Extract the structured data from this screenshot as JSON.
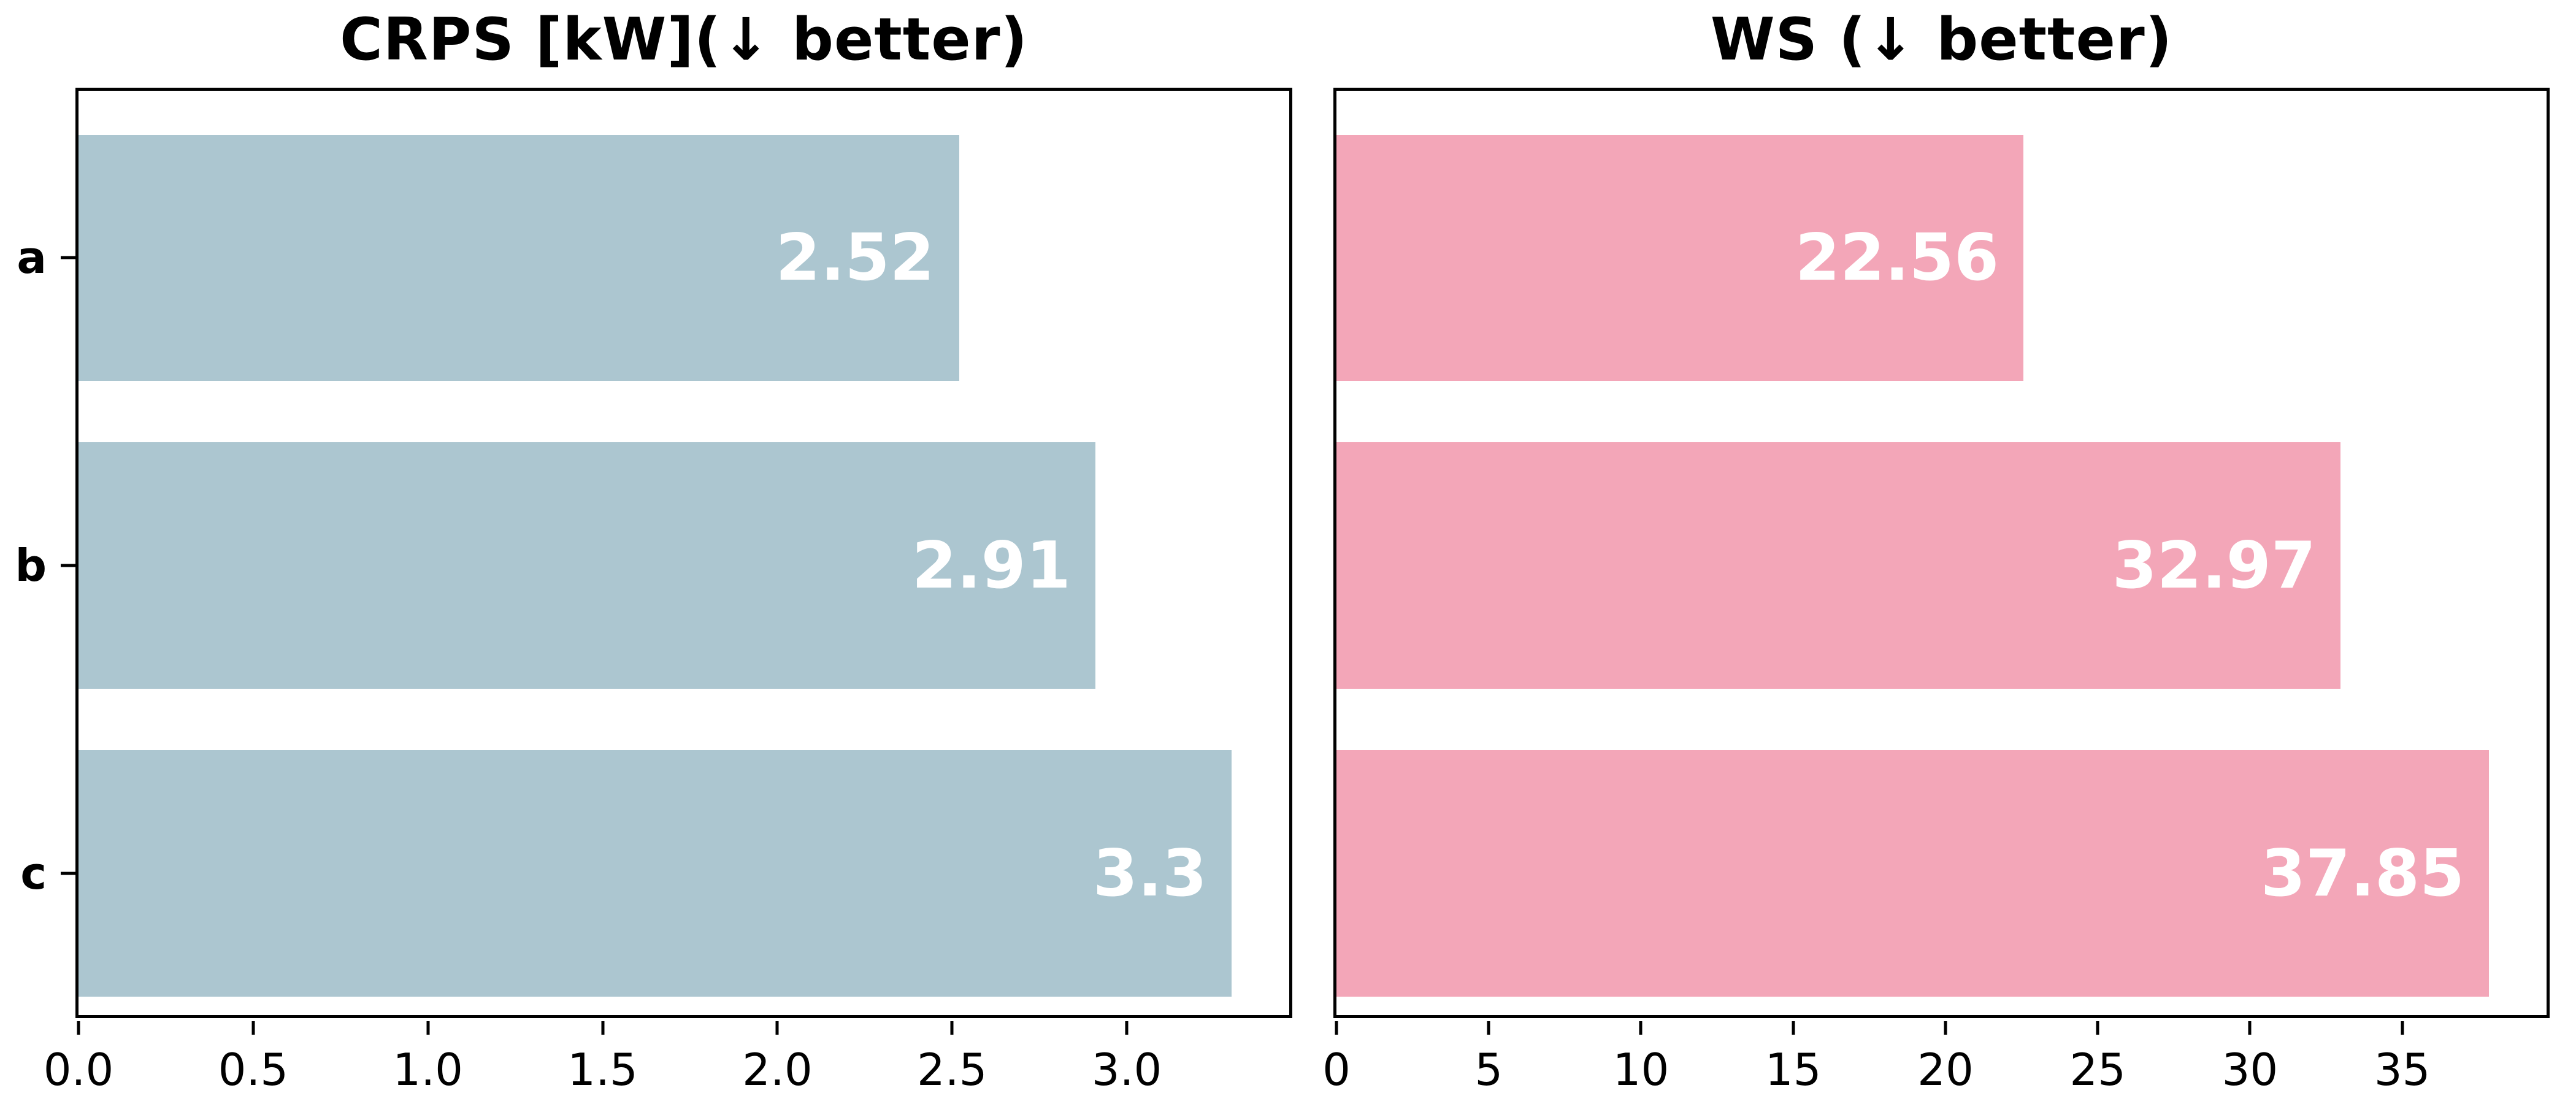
{
  "figure": {
    "background_color": "#ffffff",
    "text_color": "#000000",
    "spine_color": "#000000"
  },
  "chart_data": [
    {
      "type": "bar",
      "orientation": "horizontal",
      "title": "CRPS [kW](↓ better)",
      "categories": [
        "a",
        "b",
        "c"
      ],
      "values": [
        2.52,
        2.91,
        3.3
      ],
      "bar_labels": [
        "2.52",
        "2.91",
        "3.3"
      ],
      "bar_label_position": "inside-right",
      "bar_label_color": "#ffffff",
      "bar_color": "#acc6d0",
      "xlim": [
        0,
        3.465
      ],
      "xticks": [
        0,
        0.5,
        1,
        1.5,
        2,
        2.5,
        3
      ],
      "xtick_labels": [
        "0.0",
        "0.5",
        "1.0",
        "1.5",
        "2.0",
        "2.5",
        "3.0"
      ],
      "show_category_labels": true,
      "grid": false,
      "legend": null
    },
    {
      "type": "bar",
      "orientation": "horizontal",
      "title": "WS (↓ better)",
      "categories": [
        "a",
        "b",
        "c"
      ],
      "values": [
        22.56,
        32.97,
        37.85
      ],
      "bar_labels": [
        "22.56",
        "32.97",
        "37.85"
      ],
      "bar_label_position": "inside-right",
      "bar_label_color": "#ffffff",
      "bar_color": "#f3a6b8",
      "xlim": [
        0,
        39.74
      ],
      "xticks": [
        0,
        5,
        10,
        15,
        20,
        25,
        30,
        35
      ],
      "xtick_labels": [
        "0",
        "5",
        "10",
        "15",
        "20",
        "25",
        "30",
        "35"
      ],
      "show_category_labels": false,
      "grid": false,
      "legend": null
    }
  ]
}
